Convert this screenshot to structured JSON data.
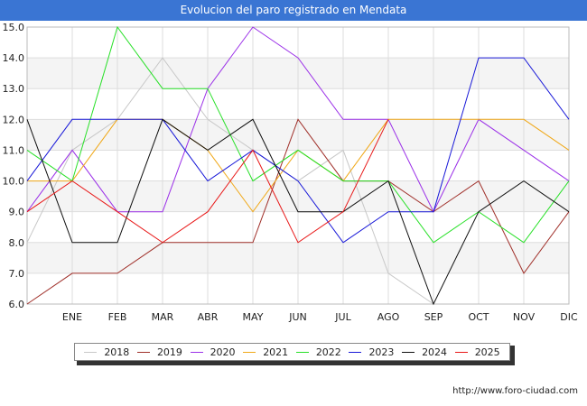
{
  "title": "Evolucion del paro registrado en Mendata",
  "footer": "http://www.foro-ciudad.com",
  "chart_data": {
    "type": "line",
    "categories": [
      "",
      "ENE",
      "FEB",
      "MAR",
      "ABR",
      "MAY",
      "JUN",
      "JUL",
      "AGO",
      "SEP",
      "OCT",
      "NOV",
      "DIC"
    ],
    "yticks": [
      "6.0",
      "7.0",
      "8.0",
      "9.0",
      "10.0",
      "11.0",
      "12.0",
      "13.0",
      "14.0",
      "15.0"
    ],
    "ylim": [
      6,
      15
    ],
    "grid": true,
    "legend_position": "bottom",
    "series": [
      {
        "name": "2018",
        "color": "#c8c8c8",
        "values": [
          8,
          11,
          12,
          14,
          12,
          11,
          10,
          11,
          7,
          6,
          null,
          null,
          null
        ]
      },
      {
        "name": "2019",
        "color": "#a0302a",
        "values": [
          6,
          7,
          7,
          8,
          8,
          8,
          12,
          10,
          10,
          9,
          10,
          7,
          9
        ]
      },
      {
        "name": "2020",
        "color": "#9b30e8",
        "values": [
          9,
          11,
          9,
          9,
          13,
          15,
          14,
          12,
          12,
          9,
          12,
          11,
          10
        ]
      },
      {
        "name": "2021",
        "color": "#f0a818",
        "values": [
          10,
          10,
          12,
          12,
          11,
          9,
          11,
          10,
          12,
          12,
          12,
          12,
          11
        ]
      },
      {
        "name": "2022",
        "color": "#28e028",
        "values": [
          11,
          10,
          15,
          13,
          13,
          10,
          11,
          10,
          10,
          8,
          9,
          8,
          10
        ]
      },
      {
        "name": "2023",
        "color": "#1818d8",
        "values": [
          10,
          12,
          12,
          12,
          10,
          11,
          10,
          8,
          9,
          9,
          14,
          14,
          12
        ]
      },
      {
        "name": "2024",
        "color": "#101010",
        "values": [
          12,
          8,
          8,
          12,
          11,
          12,
          9,
          9,
          10,
          6,
          9,
          10,
          9
        ]
      },
      {
        "name": "2025",
        "color": "#e81818",
        "values": [
          9,
          10,
          9,
          8,
          9,
          11,
          8,
          9,
          12,
          null,
          null,
          null,
          null
        ]
      }
    ]
  }
}
